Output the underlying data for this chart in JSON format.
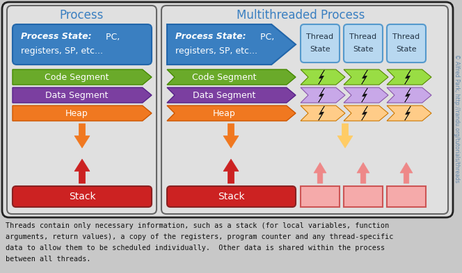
{
  "title_process": "Process",
  "title_multi": "Multithreaded Process",
  "bg_color": "#c8c8c8",
  "colors": {
    "process_state": "#3a7fc1",
    "code_segment": "#6aaa2a",
    "data_segment": "#7b3fa0",
    "heap": "#f07820",
    "stack": "#cc2222",
    "thread_state_bg": "#b8d8f0",
    "thread_state_border": "#5599cc",
    "stack_thread": "#f5aaaa",
    "stack_thread_border": "#cc5555",
    "panel_bg": "#dcdcdc",
    "panel_bg2": "#e0e0e0",
    "panel_border": "#333333",
    "inner_border": "#666666",
    "chevron_code": "#99dd44",
    "chevron_data": "#c8a8e8",
    "chevron_heap": "#ffcc88"
  },
  "caption_lines": [
    "Threads contain only necessary information, such as a stack (for local variables, function",
    "arguments, return values), a copy of the registers, program counter and any thread-specific",
    "data to allow them to be scheduled individually.  Other data is shared within the process",
    "between all threads."
  ],
  "watermark": "© Alfred Park, http://randu.org/tutorials/threads"
}
